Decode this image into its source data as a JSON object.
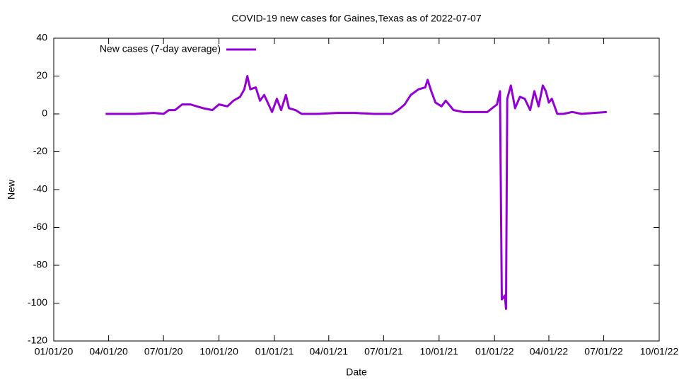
{
  "chart_data": {
    "type": "line",
    "title": "COVID-19 new cases for Gaines,Texas as of 2022-07-07",
    "xlabel": "Date",
    "ylabel": "New",
    "legend": "upper left",
    "xlim": [
      "2020-01-01",
      "2022-10-01"
    ],
    "xticks": [
      {
        "value": "2020-01-01",
        "label": "01/01/20"
      },
      {
        "value": "2020-04-01",
        "label": "04/01/20"
      },
      {
        "value": "2020-07-01",
        "label": "07/01/20"
      },
      {
        "value": "2020-10-01",
        "label": "10/01/20"
      },
      {
        "value": "2021-01-01",
        "label": "01/01/21"
      },
      {
        "value": "2021-04-01",
        "label": "04/01/21"
      },
      {
        "value": "2021-07-01",
        "label": "07/01/21"
      },
      {
        "value": "2021-10-01",
        "label": "10/01/21"
      },
      {
        "value": "2022-01-01",
        "label": "01/01/22"
      },
      {
        "value": "2022-04-01",
        "label": "04/01/22"
      },
      {
        "value": "2022-07-01",
        "label": "07/01/22"
      },
      {
        "value": "2022-10-01",
        "label": "10/01/22"
      }
    ],
    "ylim": [
      -120,
      40
    ],
    "yticks": [
      -120,
      -100,
      -80,
      -60,
      -40,
      -20,
      0,
      20,
      40
    ],
    "x": [
      "2020-03-27",
      "2020-04-15",
      "2020-05-15",
      "2020-06-15",
      "2020-07-01",
      "2020-07-10",
      "2020-07-20",
      "2020-08-01",
      "2020-08-15",
      "2020-08-25",
      "2020-09-05",
      "2020-09-20",
      "2020-10-01",
      "2020-10-15",
      "2020-10-25",
      "2020-11-05",
      "2020-11-12",
      "2020-11-17",
      "2020-11-22",
      "2020-12-01",
      "2020-12-08",
      "2020-12-15",
      "2020-12-28",
      "2021-01-05",
      "2021-01-12",
      "2021-01-20",
      "2021-01-25",
      "2021-02-05",
      "2021-02-15",
      "2021-03-15",
      "2021-04-15",
      "2021-05-15",
      "2021-06-15",
      "2021-07-15",
      "2021-07-25",
      "2021-08-05",
      "2021-08-15",
      "2021-08-28",
      "2021-09-08",
      "2021-09-12",
      "2021-09-18",
      "2021-09-25",
      "2021-10-05",
      "2021-10-12",
      "2021-10-25",
      "2021-11-10",
      "2021-12-01",
      "2021-12-20",
      "2022-01-05",
      "2022-01-10",
      "2022-01-13",
      "2022-01-18",
      "2022-01-20",
      "2022-01-22",
      "2022-01-28",
      "2022-02-04",
      "2022-02-12",
      "2022-02-20",
      "2022-03-01",
      "2022-03-08",
      "2022-03-15",
      "2022-03-22",
      "2022-03-27",
      "2022-04-01",
      "2022-04-06",
      "2022-04-15",
      "2022-04-25",
      "2022-05-10",
      "2022-05-25",
      "2022-06-15",
      "2022-07-06"
    ],
    "series": [
      {
        "name": "New cases (7-day average)",
        "color": "#9400d3",
        "values": [
          0,
          0,
          0,
          0.5,
          0,
          2,
          2,
          5,
          5,
          4,
          3,
          2,
          5,
          4,
          7,
          9,
          13,
          20,
          13,
          14,
          7,
          10,
          1,
          8,
          2,
          10,
          3,
          2,
          0,
          0,
          0.5,
          0.5,
          0,
          0,
          2,
          5,
          10,
          13,
          14,
          18,
          12,
          6,
          4,
          7,
          2,
          1,
          1,
          1,
          5,
          12,
          -98,
          -96,
          -103,
          8,
          15,
          3,
          9,
          8,
          2,
          12,
          4,
          15,
          12,
          6,
          8,
          0,
          0,
          1,
          0,
          0.5,
          1
        ]
      }
    ]
  }
}
